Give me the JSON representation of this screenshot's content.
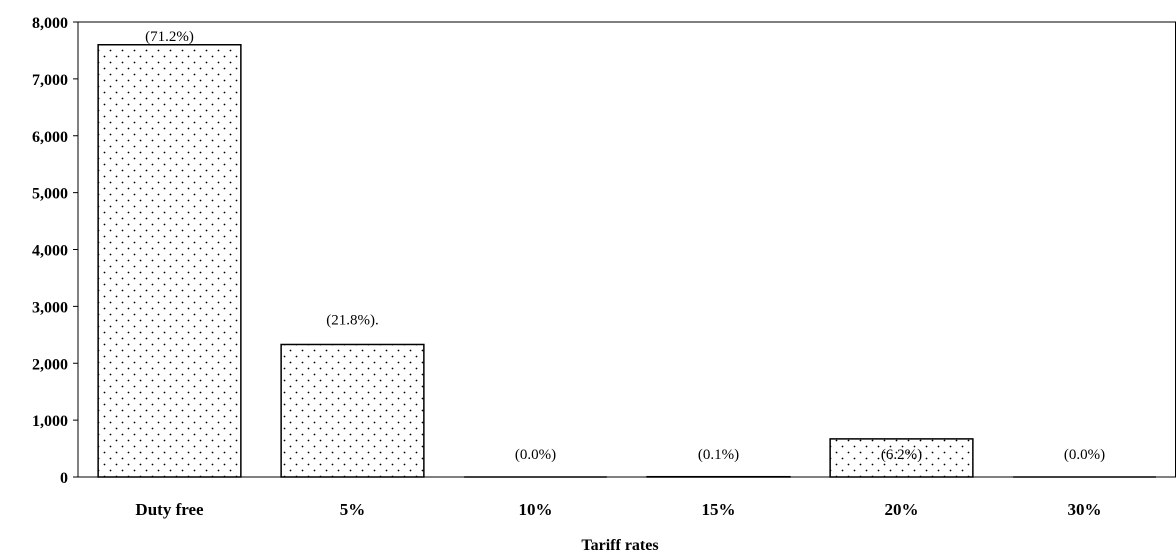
{
  "chart_data": {
    "type": "bar",
    "categories": [
      "Duty free",
      "5%",
      "10%",
      "15%",
      "20%",
      "30%"
    ],
    "values": [
      7600,
      2330,
      0,
      5,
      670,
      0
    ],
    "data_labels": [
      "(71.2%)",
      "(21.8%).",
      "(0.0%)",
      "(0.1%)",
      "(6.2%)",
      "(0.0%)"
    ],
    "title": "",
    "xlabel": "Tariff rates",
    "ylabel": "",
    "ylim": [
      0,
      8000
    ],
    "yticks": [
      "0",
      "1,000",
      "2,000",
      "3,000",
      "4,000",
      "5,000",
      "6,000",
      "7,000",
      "8,000"
    ],
    "grid": false,
    "bar_fill": "dotted-pattern",
    "colors": {
      "bar_fill": "#ffffff",
      "bar_dots": "#000000",
      "bar_stroke": "#000000"
    }
  }
}
